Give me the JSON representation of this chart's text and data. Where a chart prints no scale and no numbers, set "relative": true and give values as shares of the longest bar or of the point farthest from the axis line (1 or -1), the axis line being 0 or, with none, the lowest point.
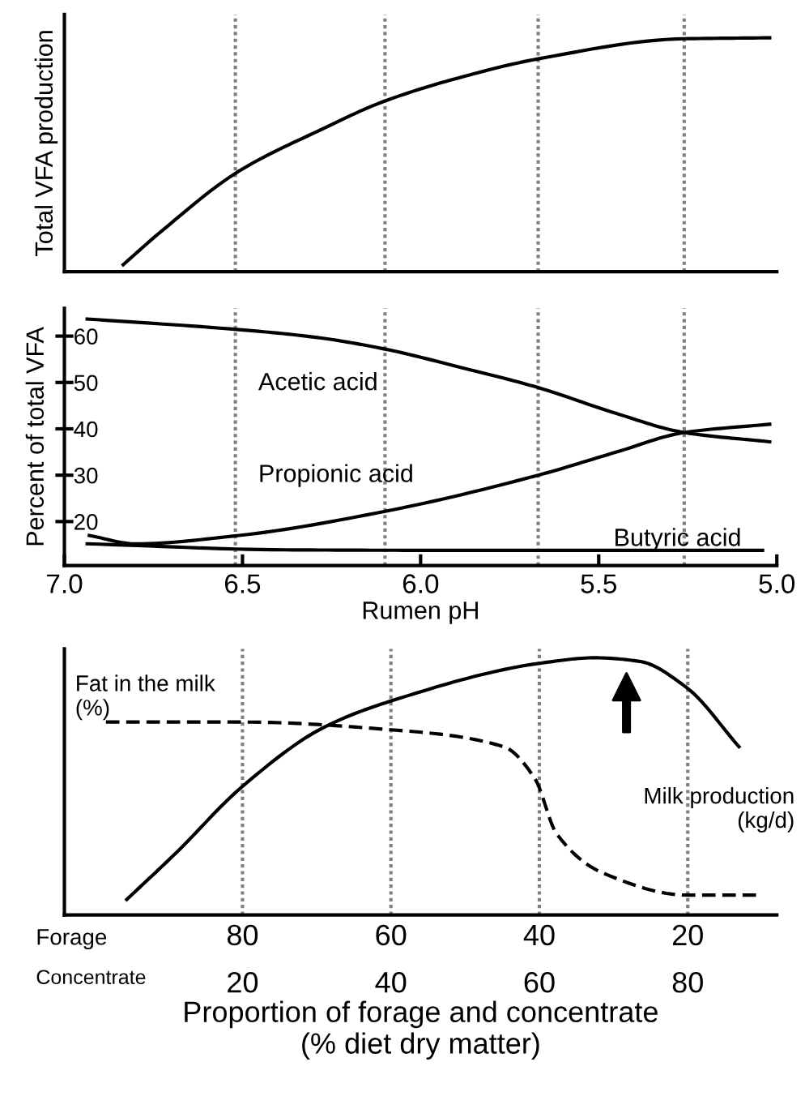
{
  "chart_data": [
    {
      "type": "line",
      "ylabel": "Total VFA production",
      "relative": true,
      "xlim": [
        7.0,
        5.0
      ],
      "tick_labels": false,
      "ref_lines": [
        {
          "axis": "x",
          "value": 6.52,
          "color": "#808080",
          "line_style": "dotted"
        },
        {
          "axis": "x",
          "value": 6.1,
          "color": "#808080",
          "line_style": "dotted"
        },
        {
          "axis": "x",
          "value": 5.67,
          "color": "#808080",
          "line_style": "dotted"
        },
        {
          "axis": "x",
          "value": 5.26,
          "color": "#808080",
          "line_style": "dotted"
        }
      ],
      "series": [
        {
          "color": "#000000",
          "x": [
            6.835,
            6.73,
            6.51,
            6.29,
            6.1,
            5.89,
            5.67,
            5.26,
            5.02
          ],
          "values": [
            0.03,
            0.17,
            0.43,
            0.6,
            0.73,
            0.83,
            0.91,
            0.996,
            1.0
          ]
        }
      ]
    },
    {
      "type": "line",
      "xlabel": "Rumen pH",
      "ylabel": "Percent of total VFA",
      "xlim": [
        7.0,
        5.0
      ],
      "ylim": [
        10.5,
        66
      ],
      "xticks": [
        {
          "value": 7.0,
          "label": "7.0"
        },
        6.5,
        {
          "value": 6.0,
          "label": "6.0"
        },
        5.5,
        {
          "value": 5.0,
          "label": "5.0"
        }
      ],
      "yticks": [
        20,
        30,
        40,
        50,
        60
      ],
      "ref_lines": [
        {
          "axis": "x",
          "value": 6.52,
          "color": "#808080",
          "line_style": "dotted"
        },
        {
          "axis": "x",
          "value": 6.1,
          "color": "#808080",
          "line_style": "dotted"
        },
        {
          "axis": "x",
          "value": 5.67,
          "color": "#808080",
          "line_style": "dotted"
        },
        {
          "axis": "x",
          "value": 5.26,
          "color": "#808080",
          "line_style": "dotted"
        }
      ],
      "series": [
        {
          "name": "Acetic acid",
          "color": "#000000",
          "x": [
            6.936,
            6.51,
            6.29,
            6.1,
            5.89,
            5.67,
            5.45,
            5.26,
            5.02
          ],
          "values": [
            63.7,
            61.4,
            59.7,
            57.2,
            53.3,
            48.9,
            43.3,
            39.2,
            37.2
          ]
        },
        {
          "name": "Propionic acid",
          "color": "#000000",
          "x": [
            6.93,
            6.8,
            6.51,
            6.1,
            5.67,
            5.45,
            5.26,
            5.02
          ],
          "values": [
            17.0,
            15.2,
            17.0,
            22.2,
            30.0,
            35.0,
            39.2,
            41.0
          ]
        },
        {
          "name": "Butyric acid",
          "color": "#000000",
          "x": [
            6.936,
            6.38,
            6.0,
            5.04
          ],
          "values": [
            15.2,
            13.9,
            13.8,
            13.8
          ]
        }
      ]
    },
    {
      "type": "line",
      "xlabel": "Proportion of forage and concentrate\n(% diet dry matter)",
      "relative": true,
      "xlim": [
        104,
        8
      ],
      "xticks": [
        80,
        60,
        40,
        20
      ],
      "x2lim": [
        -4,
        92
      ],
      "x2ticks": [
        20,
        40,
        60,
        80
      ],
      "tick_labels": "x",
      "grid": "x",
      "annotations": [
        "Forage",
        "Concentrate",
        {
          "text": "Fat in the milk\n(%)",
          "x": 98,
          "y": 0.75
        },
        "Milk production\n(kg/d)"
      ],
      "series": [
        {
          "color": "#000000",
          "line_style": "solid",
          "x": [
            95.6,
            89,
            80,
            69,
            60.2,
            39.6,
            32.5,
            26.5,
            20.2,
            13.1
          ],
          "values": [
            0.06,
            0.24,
            0.5,
            0.73,
            0.83,
            0.98,
            1.0,
            0.986,
            0.885,
            0.654
          ]
        },
        {
          "color": "#000000",
          "line_style": "dashed",
          "x": [
            98.4,
            80,
            60,
            44.8,
            40.6,
            37.7,
            31.5,
            20,
            10.8
          ],
          "values": [
            0.75,
            0.75,
            0.72,
            0.654,
            0.53,
            0.317,
            0.164,
            0.077,
            0.077
          ]
        }
      ]
    }
  ]
}
